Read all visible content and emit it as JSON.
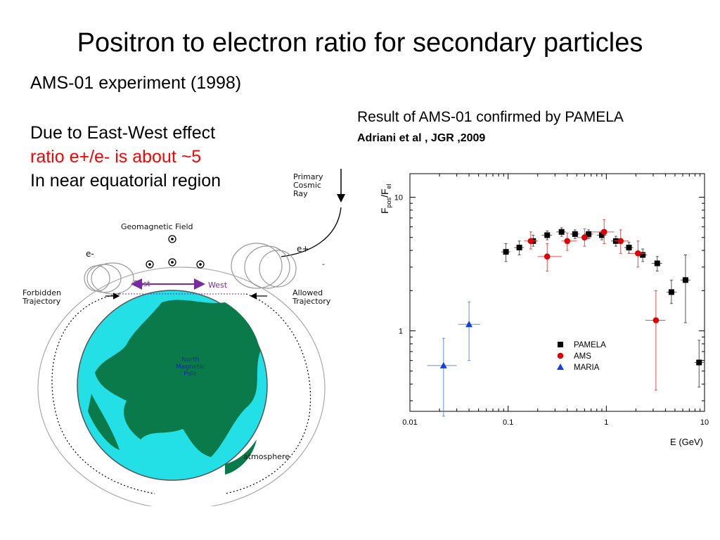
{
  "slide": {
    "title": "Positron to electron ratio for secondary particles",
    "subtitle": "AMS-01 experiment (1998)",
    "line1": "Due to East-West effect",
    "line2": "ratio  e+/e- is about ~5",
    "line3": "In near equatorial region",
    "result": "Result of AMS-01 confirmed by PAMELA",
    "citation": "Adriani et al , JGR ,2009"
  },
  "diagram": {
    "primary": [
      "Primary",
      "Cosmic",
      "Ray"
    ],
    "geomagnetic": "Geomagnetic Field",
    "eminus": "e-",
    "eplus": "e+",
    "minus": "-",
    "east": "East",
    "west": "West",
    "forbidden": [
      "Forbidden",
      "Trajectory"
    ],
    "allowed": [
      "Allowed",
      "Trajectory"
    ],
    "pole": [
      "North",
      "Magnetic",
      "Pole"
    ],
    "atmosphere": "atmosphere",
    "colors": {
      "ocean": "#22e0e6",
      "land": "#0b7a4a",
      "arrow": "#7a2aa0",
      "ring": "#999999"
    }
  },
  "chart_data": {
    "type": "scatter",
    "xscale": "log",
    "yscale": "log",
    "xlim": [
      0.01,
      10
    ],
    "ylim": [
      0.25,
      15
    ],
    "xticks": [
      {
        "v": 0.01,
        "label": "0.01"
      },
      {
        "v": 0.1,
        "label": "0.1"
      },
      {
        "v": 1,
        "label": "1"
      },
      {
        "v": 10,
        "label": "10"
      }
    ],
    "yticks": [
      {
        "v": 1,
        "label": "1"
      },
      {
        "v": 10,
        "label": "10"
      }
    ],
    "xlabel": "E  (GeV)",
    "ylabel": {
      "main": "F",
      "sub1": "pos",
      "slash": "/F",
      "sub2": "el"
    },
    "legend_position": "center-right",
    "series": [
      {
        "name": "PAMELA",
        "marker": "square",
        "color": "#000000",
        "points": [
          {
            "x": 0.095,
            "y": 3.9,
            "ylo": 3.3,
            "yhi": 4.5,
            "xlo": 0.085,
            "xhi": 0.105
          },
          {
            "x": 0.13,
            "y": 4.2,
            "ylo": 3.7,
            "yhi": 4.7,
            "xlo": 0.115,
            "xhi": 0.145
          },
          {
            "x": 0.18,
            "y": 4.7,
            "ylo": 4.3,
            "yhi": 5.2,
            "xlo": 0.16,
            "xhi": 0.2
          },
          {
            "x": 0.25,
            "y": 5.2,
            "ylo": 4.8,
            "yhi": 5.6,
            "xlo": 0.22,
            "xhi": 0.28
          },
          {
            "x": 0.35,
            "y": 5.5,
            "ylo": 5.1,
            "yhi": 5.9,
            "xlo": 0.31,
            "xhi": 0.39
          },
          {
            "x": 0.48,
            "y": 5.3,
            "ylo": 4.9,
            "yhi": 5.7,
            "xlo": 0.43,
            "xhi": 0.53
          },
          {
            "x": 0.66,
            "y": 5.3,
            "ylo": 4.9,
            "yhi": 5.7,
            "xlo": 0.59,
            "xhi": 0.73
          },
          {
            "x": 0.9,
            "y": 5.2,
            "ylo": 4.8,
            "yhi": 5.6,
            "xlo": 0.8,
            "xhi": 1.0
          },
          {
            "x": 1.25,
            "y": 4.7,
            "ylo": 4.3,
            "yhi": 5.1,
            "xlo": 1.12,
            "xhi": 1.38
          },
          {
            "x": 1.7,
            "y": 4.2,
            "ylo": 3.8,
            "yhi": 4.6,
            "xlo": 1.52,
            "xhi": 1.88
          },
          {
            "x": 2.35,
            "y": 3.7,
            "ylo": 3.3,
            "yhi": 4.1,
            "xlo": 2.1,
            "xhi": 2.6
          },
          {
            "x": 3.3,
            "y": 3.2,
            "ylo": 2.8,
            "yhi": 3.6,
            "xlo": 2.9,
            "xhi": 3.7
          },
          {
            "x": 4.6,
            "y": 1.95,
            "ylo": 1.6,
            "yhi": 2.4,
            "xlo": 4.1,
            "xhi": 5.2
          },
          {
            "x": 6.4,
            "y": 2.4,
            "ylo": 1.15,
            "yhi": 3.7,
            "xlo": 5.7,
            "xhi": 7.2
          },
          {
            "x": 8.8,
            "y": 0.58,
            "ylo": 0.38,
            "yhi": 0.85,
            "xlo": 7.9,
            "xhi": 9.8
          }
        ]
      },
      {
        "name": "AMS",
        "marker": "circle",
        "color": "#e00000",
        "points": [
          {
            "x": 0.17,
            "y": 4.7,
            "ylo": 4.1,
            "yhi": 5.5,
            "xlo": 0.145,
            "xhi": 0.2
          },
          {
            "x": 0.25,
            "y": 3.6,
            "ylo": 2.8,
            "yhi": 4.5,
            "xlo": 0.2,
            "xhi": 0.35
          },
          {
            "x": 0.4,
            "y": 4.7,
            "ylo": 4.0,
            "yhi": 5.4,
            "xlo": 0.35,
            "xhi": 0.5
          },
          {
            "x": 0.6,
            "y": 5.0,
            "ylo": 4.3,
            "yhi": 5.8,
            "xlo": 0.5,
            "xhi": 0.7
          },
          {
            "x": 0.95,
            "y": 5.5,
            "ylo": 4.5,
            "yhi": 6.8,
            "xlo": 0.7,
            "xhi": 1.2
          },
          {
            "x": 1.4,
            "y": 4.7,
            "ylo": 3.8,
            "yhi": 5.7,
            "xlo": 1.2,
            "xhi": 1.7
          },
          {
            "x": 2.1,
            "y": 3.8,
            "ylo": 3.0,
            "yhi": 4.7,
            "xlo": 1.7,
            "xhi": 2.5
          },
          {
            "x": 3.2,
            "y": 1.2,
            "ylo": 0.36,
            "yhi": 2.0,
            "xlo": 2.5,
            "xhi": 4.0
          }
        ]
      },
      {
        "name": "MARIA",
        "marker": "triangle",
        "color": "#1040e0",
        "points": [
          {
            "x": 0.022,
            "y": 0.55,
            "ylo": 0.23,
            "yhi": 0.88,
            "xlo": 0.015,
            "xhi": 0.03
          },
          {
            "x": 0.04,
            "y": 1.12,
            "ylo": 0.6,
            "yhi": 1.65,
            "xlo": 0.031,
            "xhi": 0.052
          }
        ]
      }
    ]
  }
}
